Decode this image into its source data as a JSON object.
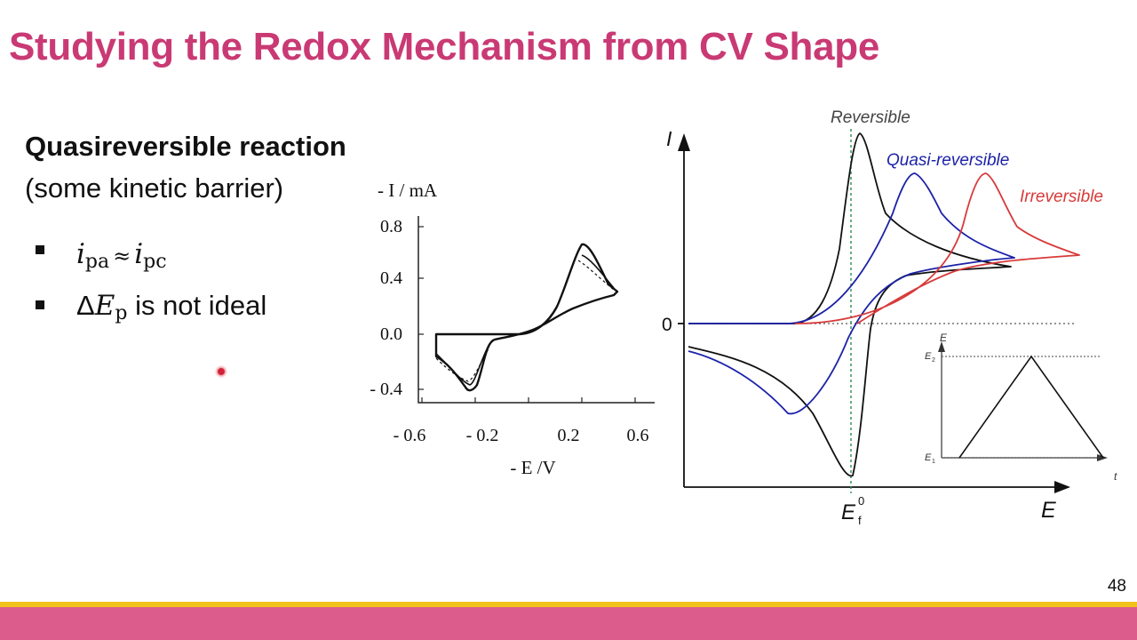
{
  "slide": {
    "title": "Studying the Redox Mechanism from CV Shape",
    "heading": "Quasireversible reaction",
    "subheading": "(some kinetic barrier)",
    "bullet1": {
      "i_sym": "i",
      "pa_sub": "pa",
      "approx": "≈",
      "i_sym2": "i",
      "pc_sub": "pc"
    },
    "bullet2": {
      "delta": "Δ",
      "e_sym": "E",
      "p_sub": "p",
      "text": " is not ideal"
    },
    "page_number": "48"
  },
  "colors": {
    "title": "#c93a74",
    "footer_bar": "#dc5d8b",
    "footer_stripe": "#f2c21c"
  },
  "figure_left": {
    "ylabel": "- I / mA",
    "xlabel": "- E /V",
    "yticks": [
      "0.8",
      "0.4",
      "0.0",
      "- 0.4"
    ],
    "xticks": [
      "- 0.6",
      "- 0.2",
      "0.2",
      "0.6"
    ]
  },
  "figure_right": {
    "y_axis_label": "I",
    "zero_label": "0",
    "x_axis_label": "E",
    "ef_label": "E",
    "ef_sub": "f",
    "ef_sup": "0",
    "curve_labels": {
      "reversible": "Reversible",
      "quasi": "Quasi-reversible",
      "irreversible": "Irreversible"
    },
    "curve_colors": {
      "reversible": "#111111",
      "quasi": "#1c22a8",
      "irreversible": "#d83a3a"
    },
    "inset": {
      "y_label": "E",
      "t_label": "t",
      "e2": "E",
      "e2_sub": "2",
      "e1": "E",
      "e1_sub": "1"
    }
  }
}
